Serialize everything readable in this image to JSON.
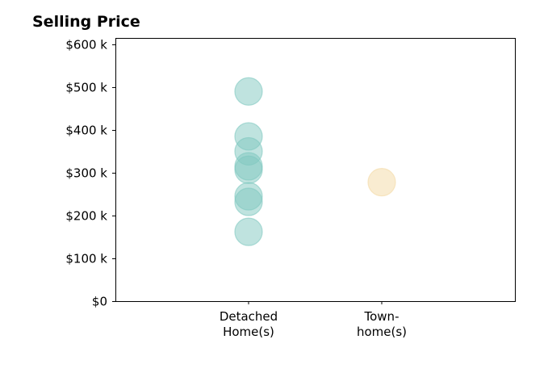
{
  "chart_data": {
    "type": "scatter",
    "title": "Selling Price",
    "xlabel": "",
    "ylabel": "",
    "categories": [
      [
        "Detached",
        "Home(s)"
      ],
      [
        "Town-",
        "home(s)"
      ]
    ],
    "ylim": [
      0,
      615000
    ],
    "yticks": [
      0,
      100000,
      200000,
      300000,
      400000,
      500000,
      600000
    ],
    "ytick_labels": [
      "$0",
      "$100 k",
      "$200 k",
      "$300 k",
      "$400 k",
      "$500 k",
      "$600 k"
    ],
    "grid": false,
    "series": [
      {
        "category_index": 0,
        "color": "#7fc8bf",
        "values": [
          490000,
          385000,
          350000,
          315000,
          307000,
          245000,
          232000,
          162000
        ]
      },
      {
        "category_index": 1,
        "color": "#f3d9a4",
        "values": [
          278000
        ]
      }
    ]
  }
}
